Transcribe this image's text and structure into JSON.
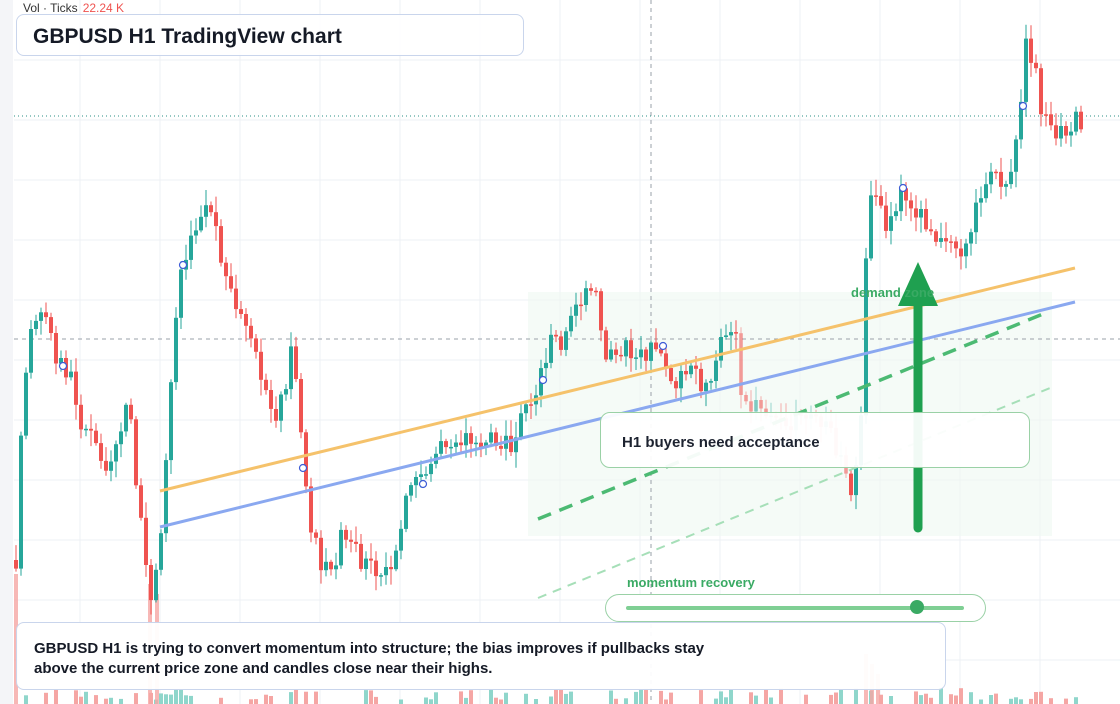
{
  "app": {
    "vol_legend": {
      "label": "Vol · Ticks",
      "value": "22.24 K"
    },
    "title": "GBPUSD H1 TradingView chart",
    "callout": "H1 buyers need acceptance",
    "demand_label": "demand zone",
    "momentum": {
      "label": "momentum recovery",
      "level": 0.86
    },
    "summary": "GBPUSD H1 is trying to convert momentum into structure; the bias improves if pullbacks stay above the current price zone and candles close near their highs."
  },
  "colors": {
    "up": "#26a69a",
    "down": "#ef5350",
    "ma_fast": "#f5c26b",
    "ma_slow": "#8aa8f0",
    "accent_green": "#1fa050",
    "grid": "#eef0f4"
  },
  "icons": {
    "arrow": "up-arrow-icon",
    "dashed_trend": "dashed-trendline-icon",
    "markers": "circle-marker-icon"
  },
  "chart_data": {
    "type": "candlestick",
    "symbol": "GBPUSD",
    "timeframe": "H1",
    "volume_total": "22.24 K"
  }
}
